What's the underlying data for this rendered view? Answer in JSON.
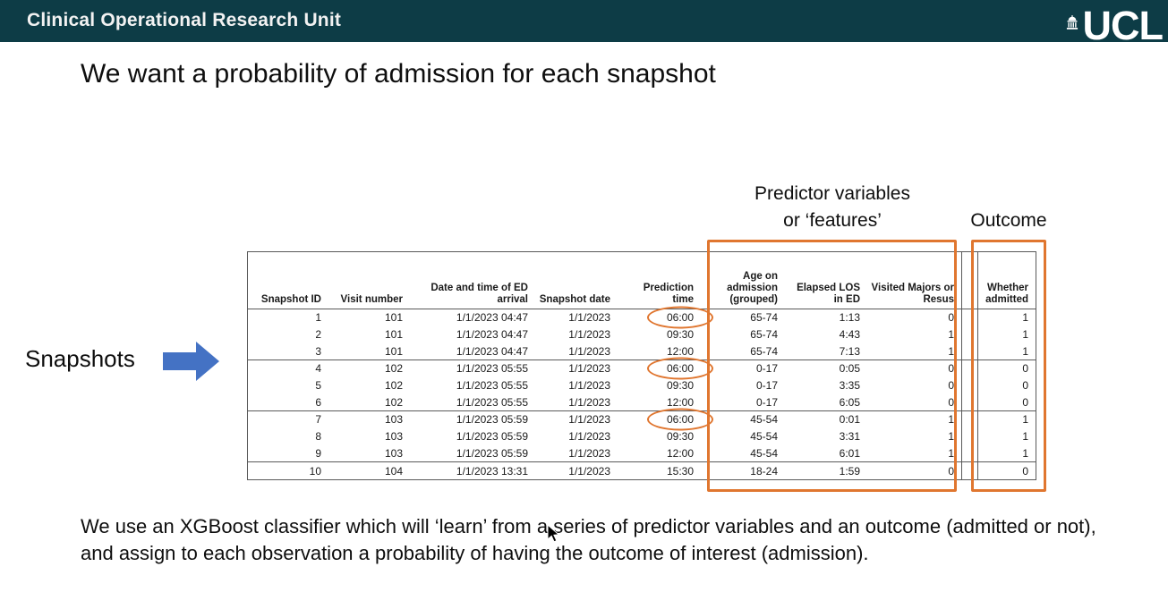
{
  "top_bar": {
    "title": "Clinical Operational Research Unit",
    "logo_text": "UCL"
  },
  "slide": {
    "title": "We want a probability of admission for each snapshot",
    "snapshots_label": "Snapshots",
    "predictor_annotation": "Predictor variables\nor ‘features’",
    "outcome_annotation": "Outcome",
    "body_paragraph": "We use an XGBoost classifier which will ‘learn’ from a series of predictor variables and an outcome (admitted or not), and assign to each observation a probability of having the outcome of interest (admission)."
  },
  "table": {
    "column_keys": [
      "snapshot-id",
      "visit-number",
      "ed-arrival-datetime",
      "snapshot-date",
      "prediction-time",
      "age-on-admission",
      "elapsed-los",
      "visited-majors-resus",
      "whether-admitted"
    ],
    "headers": [
      "Snapshot ID",
      "Visit number",
      "Date and time of ED\narrival",
      "Snapshot date",
      "Prediction\ntime",
      "Age on\nadmission\n(grouped)",
      "Elapsed LOS\nin ED",
      "Visited Majors or\nResus",
      "Whether\nadmitted"
    ],
    "rows": [
      [
        "1",
        "101",
        "1/1/2023 04:47",
        "1/1/2023",
        "06:00",
        "65-74",
        "1:13",
        "0",
        "1"
      ],
      [
        "2",
        "101",
        "1/1/2023 04:47",
        "1/1/2023",
        "09:30",
        "65-74",
        "4:43",
        "1",
        "1"
      ],
      [
        "3",
        "101",
        "1/1/2023 04:47",
        "1/1/2023",
        "12:00",
        "65-74",
        "7:13",
        "1",
        "1"
      ],
      [
        "4",
        "102",
        "1/1/2023 05:55",
        "1/1/2023",
        "06:00",
        "0-17",
        "0:05",
        "0",
        "0"
      ],
      [
        "5",
        "102",
        "1/1/2023 05:55",
        "1/1/2023",
        "09:30",
        "0-17",
        "3:35",
        "0",
        "0"
      ],
      [
        "6",
        "102",
        "1/1/2023 05:55",
        "1/1/2023",
        "12:00",
        "0-17",
        "6:05",
        "0",
        "0"
      ],
      [
        "7",
        "103",
        "1/1/2023 05:59",
        "1/1/2023",
        "06:00",
        "45-54",
        "0:01",
        "1",
        "1"
      ],
      [
        "8",
        "103",
        "1/1/2023 05:59",
        "1/1/2023",
        "09:30",
        "45-54",
        "3:31",
        "1",
        "1"
      ],
      [
        "9",
        "103",
        "1/1/2023 05:59",
        "1/1/2023",
        "12:00",
        "45-54",
        "6:01",
        "1",
        "1"
      ],
      [
        "10",
        "104",
        "1/1/2023 13:31",
        "1/1/2023",
        "15:30",
        "18-24",
        "1:59",
        "0",
        "0"
      ]
    ],
    "circled_time_rows": [
      0,
      3,
      6
    ],
    "circled_column": 4,
    "gap_before_column": 8,
    "group_border_after_rows": [
      2,
      5,
      8
    ]
  },
  "colors": {
    "header_bg": "#0d3c46",
    "accent_orange": "#e0762f",
    "arrow_blue": "#4472c4"
  }
}
